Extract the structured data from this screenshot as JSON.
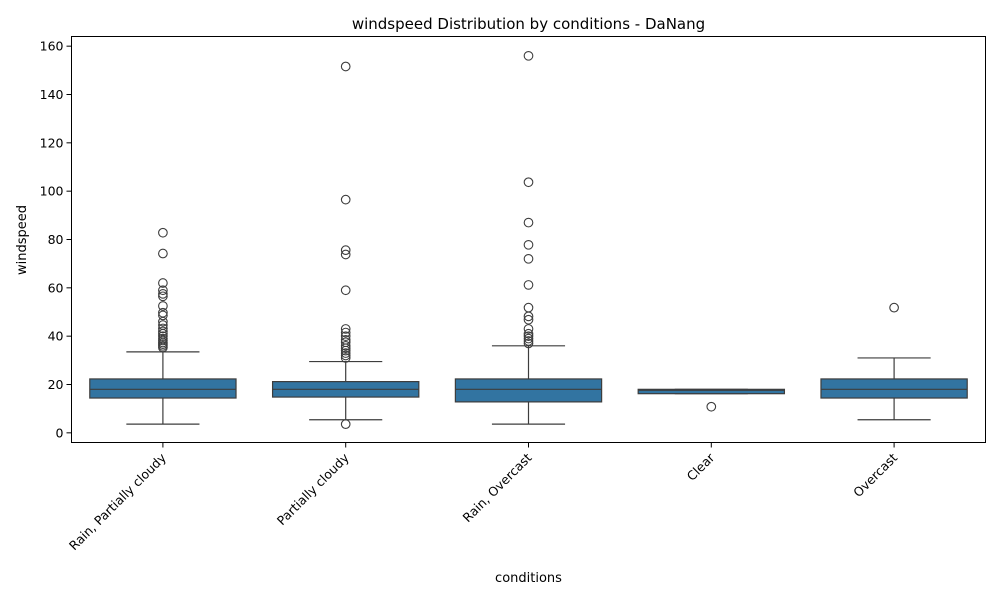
{
  "chart_data": {
    "type": "box",
    "title": "windspeed Distribution by conditions - DaNang",
    "xlabel": "conditions",
    "ylabel": "windspeed",
    "ylim": [
      -4,
      164
    ],
    "yticks": [
      0,
      20,
      40,
      60,
      80,
      100,
      120,
      140,
      160
    ],
    "grid": false,
    "box_color": "#3274a1",
    "categories": [
      "Rain, Partially cloudy",
      "Partially cloudy",
      "Rain, Overcast",
      "Clear",
      "Overcast"
    ],
    "boxes": [
      {
        "category": "Rain, Partially cloudy",
        "whisker_low": 3.6,
        "q1": 14.4,
        "median": 18.0,
        "q3": 22.3,
        "whisker_high": 33.5,
        "outliers": [
          35.3,
          36.0,
          36.7,
          37.4,
          38.2,
          39.0,
          40.0,
          41.0,
          42.0,
          43.2,
          44.6,
          46.0,
          48.6,
          49.7,
          52.5,
          56.5,
          57.5,
          59.0,
          62.0,
          74.2,
          82.8
        ]
      },
      {
        "category": "Partially cloudy",
        "whisker_low": 5.4,
        "q1": 14.8,
        "median": 18.0,
        "q3": 21.2,
        "whisker_high": 29.5,
        "outliers": [
          3.6,
          31.0,
          32.0,
          33.0,
          34.0,
          35.0,
          36.0,
          37.5,
          38.5,
          40.0,
          41.5,
          43.0,
          59.0,
          73.8,
          75.6,
          96.5,
          151.6
        ]
      },
      {
        "category": "Rain, Overcast",
        "whisker_low": 3.6,
        "q1": 12.8,
        "median": 18.0,
        "q3": 22.3,
        "whisker_high": 36.0,
        "outliers": [
          37.0,
          38.0,
          39.0,
          40.0,
          41.0,
          43.0,
          46.8,
          48.2,
          51.8,
          61.2,
          72.0,
          77.8,
          87.0,
          103.7,
          156.0
        ]
      },
      {
        "category": "Clear",
        "whisker_low": 16.2,
        "q1": 16.2,
        "median": 17.6,
        "q3": 18.0,
        "whisker_high": 18.0,
        "outliers": [
          10.8
        ]
      },
      {
        "category": "Overcast",
        "whisker_low": 5.4,
        "q1": 14.4,
        "median": 18.0,
        "q3": 22.3,
        "whisker_high": 31.0,
        "outliers": [
          51.8
        ]
      }
    ]
  }
}
